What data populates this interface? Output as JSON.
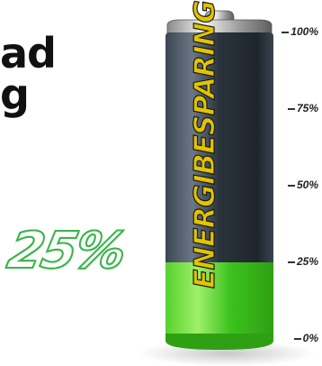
{
  "headline": {
    "line1": "ad",
    "line2": "g"
  },
  "battery": {
    "brand": "ENERGIBESPARING",
    "charge_fraction": 0.25,
    "badge": "25%",
    "colors": {
      "charge": "#3fcf2a",
      "body": "#333d4a",
      "brand_text": "#e2c400"
    }
  },
  "scale": {
    "labels": [
      "100%",
      "75%",
      "50%",
      "25%",
      "0%"
    ]
  }
}
